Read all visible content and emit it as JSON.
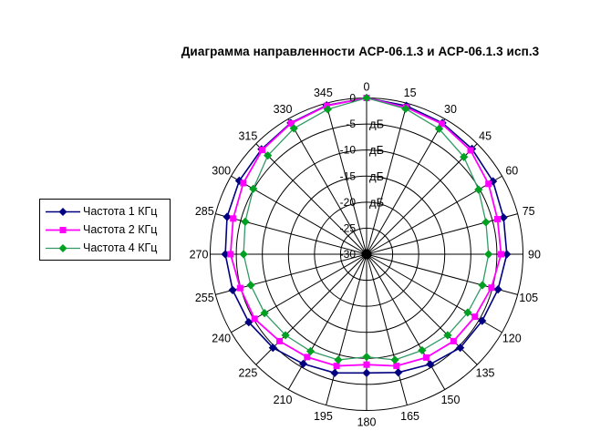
{
  "chart_data": {
    "type": "radar",
    "layout": "polar",
    "title": "Диаграмма направленности АСР-06.1.3 и АСР-06.1.3 исп.3",
    "angle_unit": "degrees",
    "angle_tick_step": 15,
    "categories": [
      0,
      15,
      30,
      45,
      60,
      75,
      90,
      105,
      120,
      135,
      150,
      165,
      180,
      195,
      210,
      225,
      240,
      255,
      270,
      285,
      300,
      315,
      330,
      345
    ],
    "series": [
      {
        "name": "Частота 1 КГц",
        "line_color": "#000080",
        "marker": "diamond",
        "marker_color": "#000080",
        "values": [
          0,
          -0.5,
          -0.9,
          -1.4,
          -2.0,
          -2.8,
          -3.1,
          -3.9,
          -4.4,
          -4.6,
          -5.6,
          -6.5,
          -7.2,
          -6.4,
          -5.7,
          -4.6,
          -3.9,
          -3.4,
          -2.9,
          -2.3,
          -1.8,
          -1.5,
          -0.9,
          -0.4
        ]
      },
      {
        "name": "Частота 2 КГц",
        "line_color": "#FF00FF",
        "marker": "square",
        "marker_color": "#FF00FF",
        "values": [
          0,
          -0.8,
          -1.1,
          -1.8,
          -3.0,
          -4.0,
          -4.2,
          -5.2,
          -6.0,
          -6.4,
          -7.1,
          -7.8,
          -8.8,
          -7.8,
          -7.2,
          -6.4,
          -5.2,
          -4.9,
          -3.9,
          -3.5,
          -2.7,
          -1.7,
          -1.0,
          -0.5
        ]
      },
      {
        "name": "Частота 4 КГц",
        "line_color": "#339966",
        "marker": "diamond",
        "marker_color": "#00A020",
        "values": [
          0,
          -1.1,
          -2.2,
          -3.6,
          -5.2,
          -6.3,
          -6.6,
          -7.0,
          -7.6,
          -8.0,
          -8.7,
          -9.0,
          -10.3,
          -9.0,
          -8.5,
          -8.0,
          -7.4,
          -7.0,
          -6.4,
          -5.9,
          -4.9,
          -3.2,
          -2.1,
          -1.2
        ]
      }
    ],
    "radial_axis": {
      "min": -30,
      "max": 0,
      "step": 5,
      "tick_labels": [
        "0",
        "-5",
        "-10",
        "-15",
        "-20",
        "-25",
        "-30"
      ],
      "unit": "дБ",
      "unit_label_positions": [
        -5,
        -10,
        -15,
        -20
      ]
    },
    "grid": true,
    "legend_position": "left",
    "grid_color": "#000000"
  }
}
